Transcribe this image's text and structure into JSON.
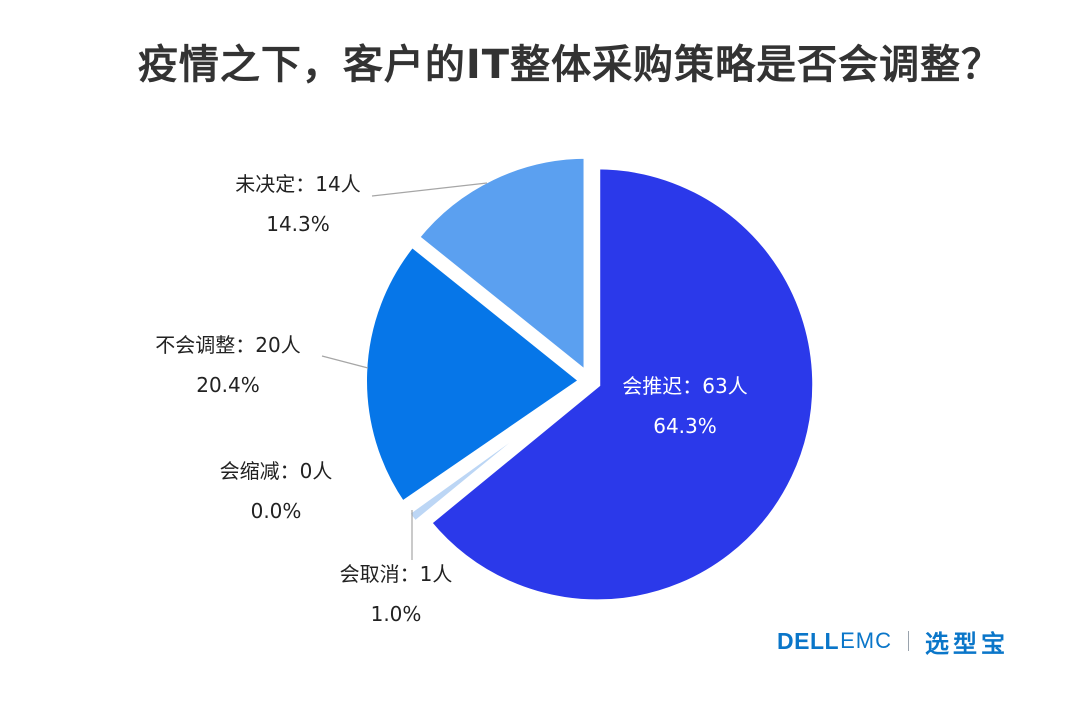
{
  "chart_data": {
    "type": "pie",
    "title": "疫情之下，客户的IT整体采购策略是否会调整？",
    "slices": [
      {
        "label": "会推迟：63人",
        "percent_label": "64.3%",
        "value": 63,
        "percent": 64.3,
        "color": "#2b39ea",
        "label_color": "#ffffff"
      },
      {
        "label": "会取消：1人",
        "percent_label": "1.0%",
        "value": 1,
        "percent": 1.0,
        "color": "#bcd6f5",
        "label_color": "#222222"
      },
      {
        "label": "会缩减：0人",
        "percent_label": "0.0%",
        "value": 0,
        "percent": 0.0,
        "color": "#5b8fe0",
        "label_color": "#222222"
      },
      {
        "label": "不会调整：20人",
        "percent_label": "20.4%",
        "value": 20,
        "percent": 20.4,
        "color": "#0676e8",
        "label_color": "#222222"
      },
      {
        "label": "未决定：14人",
        "percent_label": "14.3%",
        "value": 14,
        "percent": 14.3,
        "color": "#5ba0f0",
        "label_color": "#222222"
      }
    ],
    "start_angle_deg": 0,
    "direction": "clockwise",
    "legend": "none"
  },
  "logo": {
    "brand_a": "DELL",
    "brand_b": "EMC",
    "brand_cn": "选型宝"
  }
}
